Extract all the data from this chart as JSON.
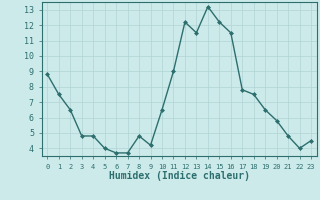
{
  "x": [
    0,
    1,
    2,
    3,
    4,
    5,
    6,
    7,
    8,
    9,
    10,
    11,
    12,
    13,
    14,
    15,
    16,
    17,
    18,
    19,
    20,
    21,
    22,
    23
  ],
  "y": [
    8.8,
    7.5,
    6.5,
    4.8,
    4.8,
    4.0,
    3.7,
    3.7,
    4.8,
    4.2,
    6.5,
    9.0,
    12.2,
    11.5,
    13.2,
    12.2,
    11.5,
    7.8,
    7.5,
    6.5,
    5.8,
    4.8,
    4.0,
    4.5
  ],
  "line_color": "#2d6e6e",
  "marker": "D",
  "marker_size": 2.0,
  "line_width": 1.0,
  "bg_color": "#cceaea",
  "grid_color": "#b0d4d4",
  "tick_color": "#2d6e6e",
  "xlabel": "Humidex (Indice chaleur)",
  "xlabel_fontsize": 7,
  "xlabel_color": "#2d6e6e",
  "ylabel_ticks": [
    4,
    5,
    6,
    7,
    8,
    9,
    10,
    11,
    12,
    13
  ],
  "xlim": [
    -0.5,
    23.5
  ],
  "ylim": [
    3.5,
    13.5
  ],
  "xticks": [
    0,
    1,
    2,
    3,
    4,
    5,
    6,
    7,
    8,
    9,
    10,
    11,
    12,
    13,
    14,
    15,
    16,
    17,
    18,
    19,
    20,
    21,
    22,
    23
  ],
  "xtick_labels": [
    "0",
    "1",
    "2",
    "3",
    "4",
    "5",
    "6",
    "7",
    "8",
    "9",
    "10",
    "11",
    "12",
    "13",
    "14",
    "15",
    "16",
    "17",
    "18",
    "19",
    "20",
    "21",
    "22",
    "23"
  ],
  "ytick_fontsize": 6,
  "xtick_fontsize": 5
}
